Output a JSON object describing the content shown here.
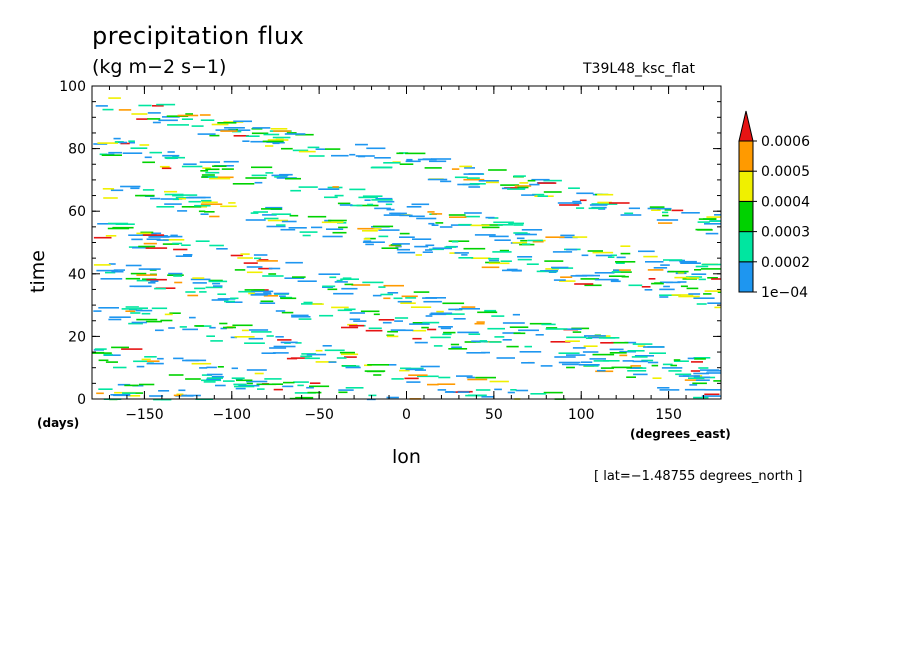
{
  "chart_data": {
    "type": "heatmap",
    "title": "precipitation flux",
    "units": "(kg m−2 s−1)",
    "experiment": "T39L48_ksc_flat",
    "xlabel": "lon",
    "ylabel": "time",
    "x_unit": "(degrees_east)",
    "y_unit": "(days)",
    "note": "[ lat=−1.48755 degrees_north ]",
    "xlim": [
      -180,
      180
    ],
    "ylim": [
      0,
      100
    ],
    "x_ticks": [
      -150,
      -100,
      -50,
      0,
      50,
      100,
      150
    ],
    "x_tick_labels": [
      "−150",
      "−100",
      "−50",
      "0",
      "50",
      "100",
      "150"
    ],
    "y_ticks": [
      0,
      20,
      40,
      60,
      80,
      100
    ],
    "y_tick_labels": [
      "0",
      "20",
      "40",
      "60",
      "80",
      "100"
    ],
    "grid": false,
    "legend": "right colorbar",
    "colorbar": {
      "levels": [
        0.0001,
        0.0002,
        0.0003,
        0.0004,
        0.0005,
        0.0006
      ],
      "labels": [
        "1e−04",
        "0.0002",
        "0.0003",
        "0.0004",
        "0.0005",
        "0.0006"
      ],
      "colors": [
        "#1e96f0",
        "#00e6a0",
        "#00d200",
        "#f0f000",
        "#ff9a00",
        "#e61414"
      ],
      "extend": "max"
    },
    "bands": [
      {
        "t0": 95,
        "slope": -0.11
      },
      {
        "t0": 82,
        "slope": -0.12
      },
      {
        "t0": 68,
        "slope": -0.1
      },
      {
        "t0": 55,
        "slope": -0.13
      },
      {
        "t0": 42,
        "slope": -0.11
      },
      {
        "t0": 30,
        "slope": -0.12
      },
      {
        "t0": 15,
        "slope": -0.1
      },
      {
        "t0": 4,
        "slope": -0.09
      }
    ]
  }
}
